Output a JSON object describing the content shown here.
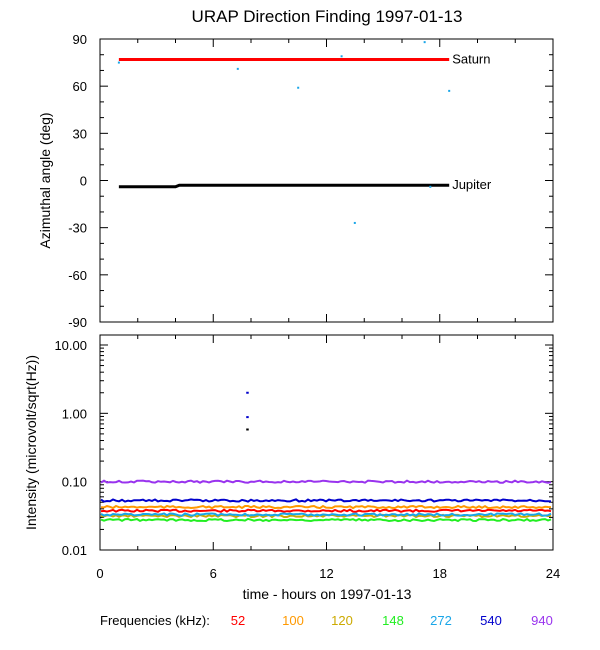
{
  "title": "URAP Direction Finding  1997-01-13",
  "xlabel": "time - hours on 1997-01-13",
  "x_ticks": [
    "0",
    "6",
    "12",
    "18",
    "24"
  ],
  "frequencies_label": "Frequencies (kHz):",
  "frequencies": [
    {
      "label": "52",
      "color": "#ff0000"
    },
    {
      "label": "100",
      "color": "#ff9900"
    },
    {
      "label": "120",
      "color": "#ccaa00"
    },
    {
      "label": "148",
      "color": "#22ee22"
    },
    {
      "label": "272",
      "color": "#1aa6e8"
    },
    {
      "label": "540",
      "color": "#0000cc"
    },
    {
      "label": "940",
      "color": "#9933ee"
    }
  ],
  "chart_data": [
    {
      "type": "line",
      "ylabel": "Azimuthal angle (deg)",
      "xlim": [
        0,
        24
      ],
      "ylim": [
        -90,
        90
      ],
      "yticks": [
        "90",
        "60",
        "30",
        "0",
        "-30",
        "-60",
        "-90"
      ],
      "series": [
        {
          "name": "Saturn",
          "color": "#ff0000",
          "x": [
            1,
            18.5
          ],
          "y": [
            77,
            77
          ]
        },
        {
          "name": "Jupiter",
          "color": "#000000",
          "x": [
            1,
            4,
            4.2,
            18.5
          ],
          "y": [
            -4,
            -4,
            -3,
            -3
          ]
        }
      ],
      "scatter": {
        "color": "#1aa6e8",
        "points": [
          [
            1.0,
            75
          ],
          [
            7.3,
            71
          ],
          [
            10.5,
            59
          ],
          [
            12.8,
            79
          ],
          [
            17.2,
            88
          ],
          [
            18.5,
            57
          ],
          [
            13.5,
            -27
          ],
          [
            17.5,
            -4
          ]
        ]
      }
    },
    {
      "type": "line",
      "ylabel": "Intensity (microvolt/sqrt(Hz))",
      "yscale": "log",
      "xlim": [
        0,
        24
      ],
      "ylim": [
        0.01,
        14
      ],
      "yticks": [
        "10.00",
        "1.00",
        "0.10",
        "0.01"
      ],
      "series": [
        {
          "name": "52",
          "color": "#ff0000",
          "x": [
            0,
            24
          ],
          "y": [
            0.0375,
            0.0375
          ]
        },
        {
          "name": "100",
          "color": "#ff9900",
          "x": [
            0,
            24
          ],
          "y": [
            0.0425,
            0.0425
          ]
        },
        {
          "name": "120",
          "color": "#ccaa00",
          "x": [
            0,
            24
          ],
          "y": [
            0.0315,
            0.0315
          ]
        },
        {
          "name": "148",
          "color": "#22ee22",
          "x": [
            0,
            24
          ],
          "y": [
            0.0275,
            0.0275
          ]
        },
        {
          "name": "272",
          "color": "#1aa6e8",
          "x": [
            0,
            24
          ],
          "y": [
            0.033,
            0.033
          ]
        },
        {
          "name": "540",
          "color": "#0000cc",
          "x": [
            0,
            24
          ],
          "y": [
            0.053,
            0.053
          ]
        },
        {
          "name": "940",
          "color": "#9933ee",
          "x": [
            0,
            24
          ],
          "y": [
            0.1,
            0.1
          ]
        }
      ],
      "scatter": {
        "points": [
          {
            "x": 7.8,
            "y": 2.0,
            "color": "#0000cc"
          },
          {
            "x": 7.8,
            "y": 0.88,
            "color": "#0000cc"
          },
          {
            "x": 7.8,
            "y": 0.58,
            "color": "#000000"
          }
        ]
      }
    }
  ]
}
